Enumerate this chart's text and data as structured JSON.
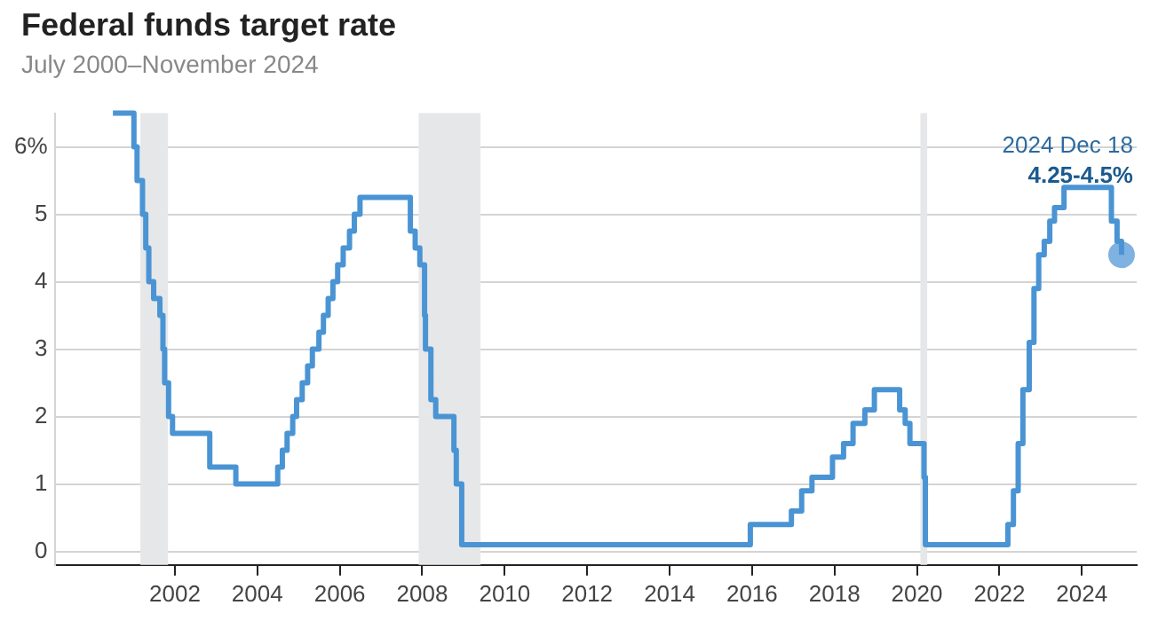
{
  "chart_data": {
    "type": "step",
    "title": "Federal funds target rate",
    "subtitle": "July 2000–November 2024",
    "xlim": [
      "1999-02",
      "2025-05"
    ],
    "xticks": [
      "2002",
      "2004",
      "2006",
      "2008",
      "2010",
      "2012",
      "2014",
      "2016",
      "2018",
      "2020",
      "2022",
      "2024"
    ],
    "ylim": [
      -0.2,
      6.5
    ],
    "yticks": [
      0,
      1,
      2,
      3,
      4,
      5,
      {
        "value": 6,
        "label": "6%"
      }
    ],
    "grid": "y",
    "legend": false,
    "bands": [
      {
        "axis": "x",
        "from": "2001-03",
        "to": "2001-11",
        "color": "#e6e7e9"
      },
      {
        "axis": "x",
        "from": "2007-12",
        "to": "2009-06",
        "color": "#e6e7e9"
      },
      {
        "axis": "x",
        "from": "2020-02",
        "to": "2020-04",
        "color": "#e6e7e9"
      }
    ],
    "series": [
      {
        "color": "#4a94d4",
        "x": [
          "2000-07-01",
          "2001-01-03",
          "2001-01-31",
          "2001-03-20",
          "2001-04-18",
          "2001-05-15",
          "2001-06-27",
          "2001-08-21",
          "2001-09-17",
          "2001-10-02",
          "2001-11-06",
          "2001-12-11",
          "2002-11-06",
          "2003-06-25",
          "2004-06-30",
          "2004-08-10",
          "2004-09-21",
          "2004-11-10",
          "2004-12-14",
          "2005-02-02",
          "2005-03-22",
          "2005-05-03",
          "2005-06-30",
          "2005-08-09",
          "2005-09-20",
          "2005-11-01",
          "2005-12-13",
          "2006-01-31",
          "2006-03-28",
          "2006-05-10",
          "2006-06-29",
          "2007-09-18",
          "2007-10-31",
          "2007-12-11",
          "2008-01-22",
          "2008-01-30",
          "2008-03-18",
          "2008-04-30",
          "2008-10-08",
          "2008-10-29",
          "2008-12-16",
          "2015-12-17",
          "2016-12-15",
          "2017-03-16",
          "2017-06-15",
          "2017-12-14",
          "2018-03-22",
          "2018-06-14",
          "2018-09-27",
          "2018-12-20",
          "2019-08-01",
          "2019-09-19",
          "2019-10-31",
          "2020-03-04",
          "2020-03-16",
          "2022-03-17",
          "2022-05-05",
          "2022-06-16",
          "2022-07-28",
          "2022-09-22",
          "2022-11-03",
          "2022-12-15",
          "2023-02-02",
          "2023-03-23",
          "2023-05-04",
          "2023-07-27",
          "2024-09-19",
          "2024-11-08",
          "2024-12-18"
        ],
        "values": [
          6.5,
          6.0,
          5.5,
          5.0,
          4.5,
          4.0,
          3.75,
          3.5,
          3.0,
          2.5,
          2.0,
          1.75,
          1.25,
          1.0,
          1.25,
          1.5,
          1.75,
          2.0,
          2.25,
          2.5,
          2.75,
          3.0,
          3.25,
          3.5,
          3.75,
          4.0,
          4.25,
          4.5,
          4.75,
          5.0,
          5.25,
          4.75,
          4.5,
          4.25,
          3.5,
          3.0,
          2.25,
          2.0,
          1.5,
          1.0,
          0.1,
          0.4,
          0.6,
          0.9,
          1.1,
          1.4,
          1.6,
          1.9,
          2.1,
          2.4,
          2.1,
          1.9,
          1.6,
          1.1,
          0.1,
          0.4,
          0.9,
          1.6,
          2.4,
          3.1,
          3.9,
          4.4,
          4.6,
          4.9,
          5.1,
          5.4,
          4.9,
          4.6,
          4.4
        ]
      },
      {
        "type": "scatter",
        "color": "#7fb2e0",
        "marker": "circle",
        "x": [
          "2024-12-18"
        ],
        "values": [
          4.4
        ]
      }
    ],
    "annotations": [
      "2024 Dec 18",
      "4.25-4.5%"
    ]
  }
}
